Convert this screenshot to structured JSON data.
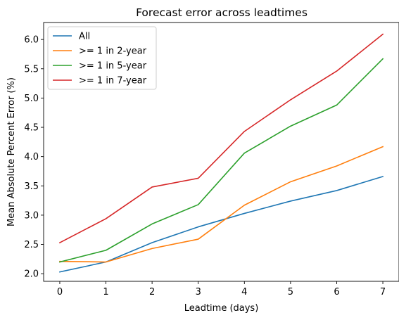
{
  "chart_data": {
    "type": "line",
    "title": "Forecast error across leadtimes",
    "xlabel": "Leadtime (days)",
    "ylabel": "Mean Absolute Percent Error (%)",
    "x": [
      0,
      1,
      2,
      3,
      4,
      5,
      6,
      7
    ],
    "xticks": [
      "0",
      "1",
      "2",
      "3",
      "4",
      "5",
      "6",
      "7"
    ],
    "yticks": [
      "2.0",
      "2.5",
      "3.0",
      "3.5",
      "4.0",
      "4.5",
      "5.0",
      "5.5",
      "6.0"
    ],
    "xlim": [
      -0.35,
      7.35
    ],
    "ylim": [
      1.87,
      6.29
    ],
    "grid": false,
    "legend_position": "top-left",
    "series": [
      {
        "name": "All",
        "color": "#1f77b4",
        "values": [
          2.03,
          2.2,
          2.53,
          2.8,
          3.03,
          3.24,
          3.42,
          3.66
        ]
      },
      {
        "name": ">= 1 in 2-year",
        "color": "#ff7f0e",
        "values": [
          2.21,
          2.2,
          2.43,
          2.59,
          3.17,
          3.57,
          3.84,
          4.17
        ]
      },
      {
        "name": ">= 1 in 5-year",
        "color": "#2ca02c",
        "values": [
          2.2,
          2.4,
          2.85,
          3.18,
          4.06,
          4.52,
          4.88,
          5.67
        ]
      },
      {
        "name": ">= 1 in 7-year",
        "color": "#d62728",
        "values": [
          2.53,
          2.94,
          3.48,
          3.63,
          4.43,
          4.97,
          5.46,
          6.09
        ]
      }
    ]
  }
}
